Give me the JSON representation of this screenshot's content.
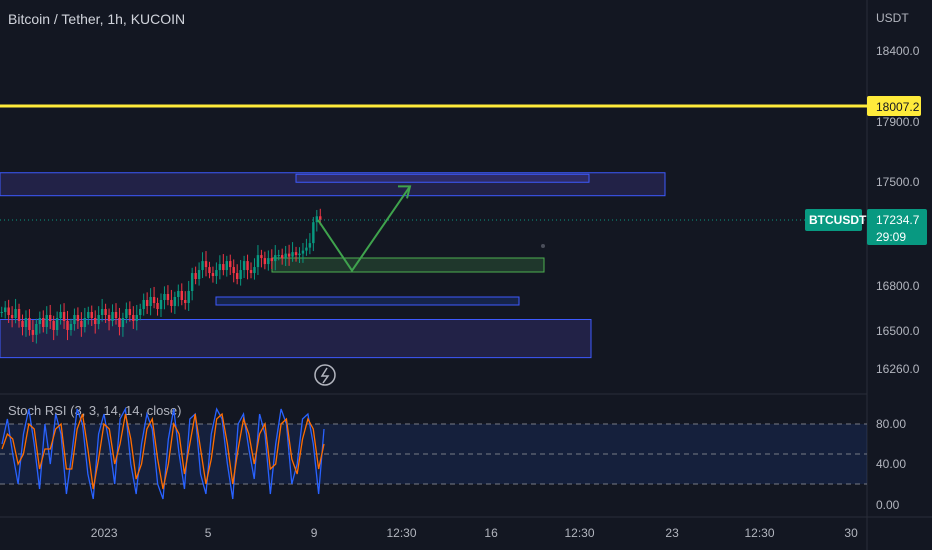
{
  "header": {
    "title": "Bitcoin / Tether, 1h, KUCOIN"
  },
  "price_axis": {
    "currency": "USDT",
    "ticks": [
      "18400.0",
      "17900.0",
      "17500.0",
      "16800.0",
      "16500.0",
      "16260.0"
    ]
  },
  "time_axis": {
    "ticks": [
      "2023",
      "5",
      "9",
      "12:30",
      "16",
      "12:30",
      "23",
      "12:30",
      "30"
    ]
  },
  "yellow_line": {
    "value": "18007.2",
    "color": "#ffeb3b"
  },
  "last_price": {
    "symbol": "BTCUSDT",
    "price": "17234.7",
    "countdown": "29:09",
    "color": "#089981"
  },
  "indicator": {
    "label": "Stoch RSI (3, 3, 14, 14, close)",
    "ticks": [
      "80.00",
      "40.00",
      "0.00"
    ],
    "k_color": "#2962ff",
    "d_color": "#ff6d00",
    "upper": 80,
    "middle": 50,
    "lower": 20
  },
  "colors": {
    "up": "#089981",
    "down": "#f23645",
    "zone": "#5a4fcf",
    "arrow": "#3fa34d"
  },
  "chart_data": {
    "type": "candlestick",
    "title": "Bitcoin / Tether, 1h, KUCOIN",
    "ylim": [
      16200,
      18600
    ],
    "close_series": [
      16620,
      16650,
      16600,
      16580,
      16640,
      16560,
      16520,
      16580,
      16500,
      16470,
      16540,
      16580,
      16520,
      16600,
      16560,
      16500,
      16580,
      16620,
      16560,
      16500,
      16540,
      16600,
      16560,
      16520,
      16580,
      16620,
      16580,
      16540,
      16600,
      16640,
      16600,
      16560,
      16620,
      16580,
      16520,
      16580,
      16640,
      16600,
      16560,
      16600,
      16640,
      16700,
      16660,
      16720,
      16680,
      16640,
      16700,
      16740,
      16700,
      16660,
      16720,
      16760,
      16700,
      16680,
      16760,
      16880,
      16840,
      16900,
      16960,
      16920,
      16880,
      16860,
      16900,
      16940,
      16900,
      16960,
      16920,
      16880,
      16840,
      16900,
      16960,
      16900,
      16880,
      16920,
      17000,
      16980,
      16940,
      16980,
      16960,
      17000,
      17000,
      16980,
      17010,
      16990,
      17020,
      17000,
      17010,
      17030,
      17050,
      17080,
      17220,
      17260,
      17235
    ],
    "zones": [
      {
        "from": 17400,
        "to": 17555
      },
      {
        "from": 16700,
        "to": 16720
      },
      {
        "from": 16330,
        "to": 16570
      },
      {
        "from": 17495,
        "to": 17545
      }
    ],
    "projection": [
      17235,
      17030,
      17450
    ],
    "stoch_k": [
      60,
      85,
      50,
      20,
      70,
      95,
      60,
      15,
      80,
      40,
      90,
      70,
      10,
      50,
      95,
      80,
      30,
      5,
      70,
      90,
      60,
      20,
      85,
      95,
      40,
      10,
      60,
      90,
      75,
      20,
      5,
      65,
      95,
      50,
      15,
      85,
      90,
      30,
      10,
      70,
      95,
      85,
      40,
      5,
      80,
      90,
      55,
      25,
      90,
      70,
      10,
      60,
      95,
      80,
      20,
      40,
      85,
      90,
      60,
      10,
      75
    ],
    "stoch_d": [
      55,
      70,
      65,
      40,
      50,
      80,
      75,
      35,
      55,
      55,
      75,
      80,
      35,
      35,
      75,
      90,
      55,
      15,
      45,
      80,
      75,
      40,
      60,
      90,
      65,
      25,
      40,
      75,
      85,
      45,
      15,
      40,
      80,
      70,
      30,
      60,
      90,
      55,
      20,
      45,
      85,
      90,
      60,
      20,
      55,
      85,
      70,
      40,
      70,
      80,
      35,
      40,
      80,
      85,
      45,
      30,
      65,
      85,
      75,
      35,
      60
    ]
  }
}
